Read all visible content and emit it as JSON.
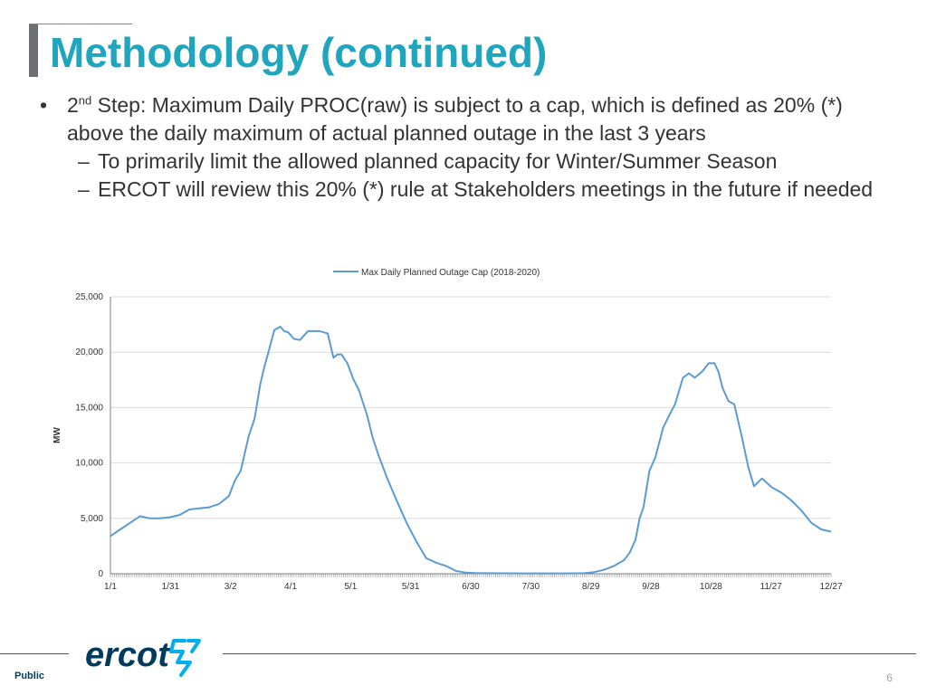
{
  "title": "Methodology (continued)",
  "bullets": [
    {
      "pre": "2",
      "sup": "nd",
      "text": " Step: Maximum Daily PROC(raw) is subject to a cap, which is defined as 20% (*) above the daily maximum of actual planned outage in the last 3 years"
    },
    {
      "text": "To primarily limit the allowed planned capacity for Winter/Summer Season"
    },
    {
      "text": "ERCOT will review this 20% (*) rule at Stakeholders meetings in the future if needed"
    }
  ],
  "footer": {
    "label": "Public",
    "page": "6",
    "logo_text": "ercot"
  },
  "colors": {
    "title": "#1fa5be",
    "line": "#5b9bd5",
    "logo": "#003a5d",
    "logo_accent": "#00aeef"
  },
  "chart_data": {
    "type": "line",
    "title": "",
    "xlabel": "",
    "ylabel": "MW",
    "ylim": [
      0,
      25000
    ],
    "yticks": [
      "0",
      "5,000",
      "10,000",
      "15,000",
      "20,000",
      "25,000"
    ],
    "xtick_labels": [
      "1/1",
      "1/31",
      "3/2",
      "4/1",
      "5/1",
      "5/31",
      "6/30",
      "7/30",
      "8/29",
      "9/28",
      "10/28",
      "11/27",
      "12/27"
    ],
    "xrange_days": [
      0,
      365
    ],
    "grid": true,
    "legend_position": "top",
    "series": [
      {
        "name": "Max Daily Planned Outage Cap (2018-2020)",
        "x": [
          0,
          5,
          10,
          15,
          20,
          25,
          30,
          35,
          40,
          45,
          50,
          55,
          60,
          63,
          66,
          70,
          73,
          76,
          78,
          80,
          83,
          86,
          88,
          90,
          93,
          96,
          100,
          103,
          106,
          110,
          113,
          115,
          117,
          120,
          123,
          126,
          130,
          133,
          136,
          140,
          145,
          150,
          155,
          160,
          165,
          170,
          175,
          180,
          185,
          190,
          200,
          210,
          220,
          230,
          240,
          245,
          250,
          255,
          260,
          263,
          266,
          268,
          270,
          273,
          276,
          280,
          283,
          286,
          290,
          293,
          296,
          300,
          303,
          306,
          308,
          310,
          313,
          316,
          320,
          323,
          326,
          330,
          335,
          340,
          345,
          350,
          355,
          360,
          365
        ],
        "y": [
          3400,
          4000,
          4600,
          5200,
          5000,
          5000,
          5100,
          5300,
          5800,
          5900,
          6000,
          6300,
          7000,
          8400,
          9300,
          12400,
          14000,
          17200,
          18700,
          20000,
          22000,
          22300,
          21900,
          21800,
          21200,
          21100,
          21900,
          21900,
          21900,
          21700,
          19500,
          19800,
          19800,
          19000,
          17600,
          16500,
          14300,
          12200,
          10600,
          8700,
          6600,
          4600,
          2900,
          1400,
          1000,
          700,
          250,
          100,
          60,
          50,
          40,
          30,
          30,
          30,
          50,
          150,
          350,
          700,
          1200,
          1900,
          3100,
          5000,
          6000,
          9300,
          10500,
          13200,
          14300,
          15300,
          17700,
          18100,
          17700,
          18300,
          19000,
          19000,
          18200,
          16800,
          15600,
          15300,
          12200,
          9700,
          7900,
          8600,
          7800,
          7300,
          6600,
          5700,
          4600,
          4000,
          3800
        ]
      }
    ]
  }
}
